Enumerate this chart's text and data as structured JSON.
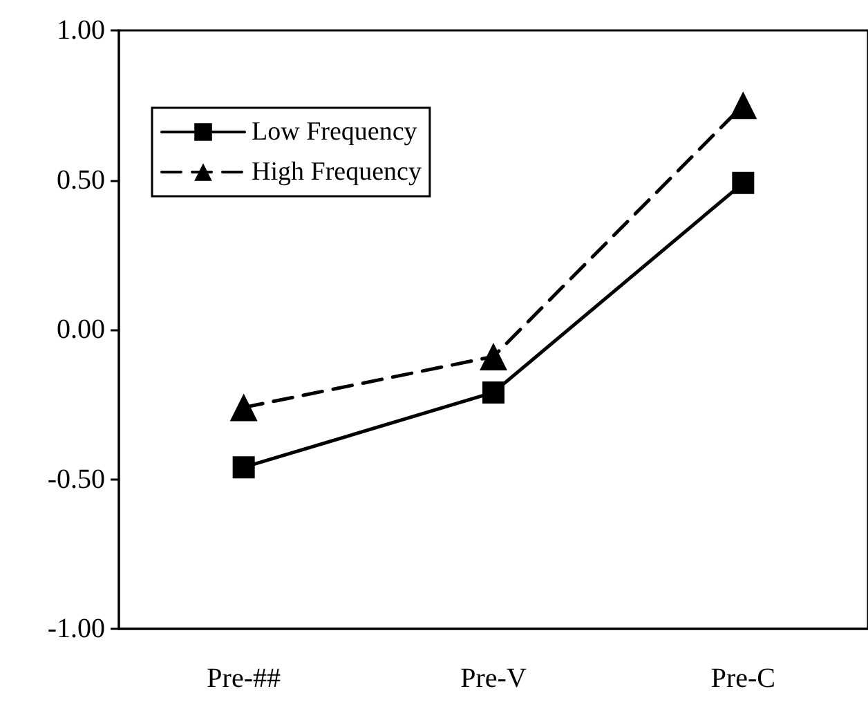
{
  "chart_data": {
    "type": "line",
    "categories": [
      "Pre-##",
      "Pre-V",
      "Pre-C"
    ],
    "series": [
      {
        "name": "Low Frequency",
        "color": "#000000",
        "marker": "square",
        "line_style": "solid",
        "values": [
          -0.46,
          -0.21,
          0.49
        ]
      },
      {
        "name": "High Frequency",
        "color": "#000000",
        "marker": "triangle",
        "line_style": "dashed",
        "values": [
          -0.26,
          -0.09,
          0.75
        ]
      }
    ],
    "ylim": [
      -1,
      1
    ],
    "yticks": [
      {
        "value": -1,
        "label": "-1.00"
      },
      {
        "value": -0.5,
        "label": "-0.50"
      },
      {
        "value": 0,
        "label": "0.00"
      },
      {
        "value": 0.5,
        "label": "0.50"
      },
      {
        "value": 1,
        "label": "1.00"
      }
    ],
    "grid": false,
    "legend": "top left"
  }
}
